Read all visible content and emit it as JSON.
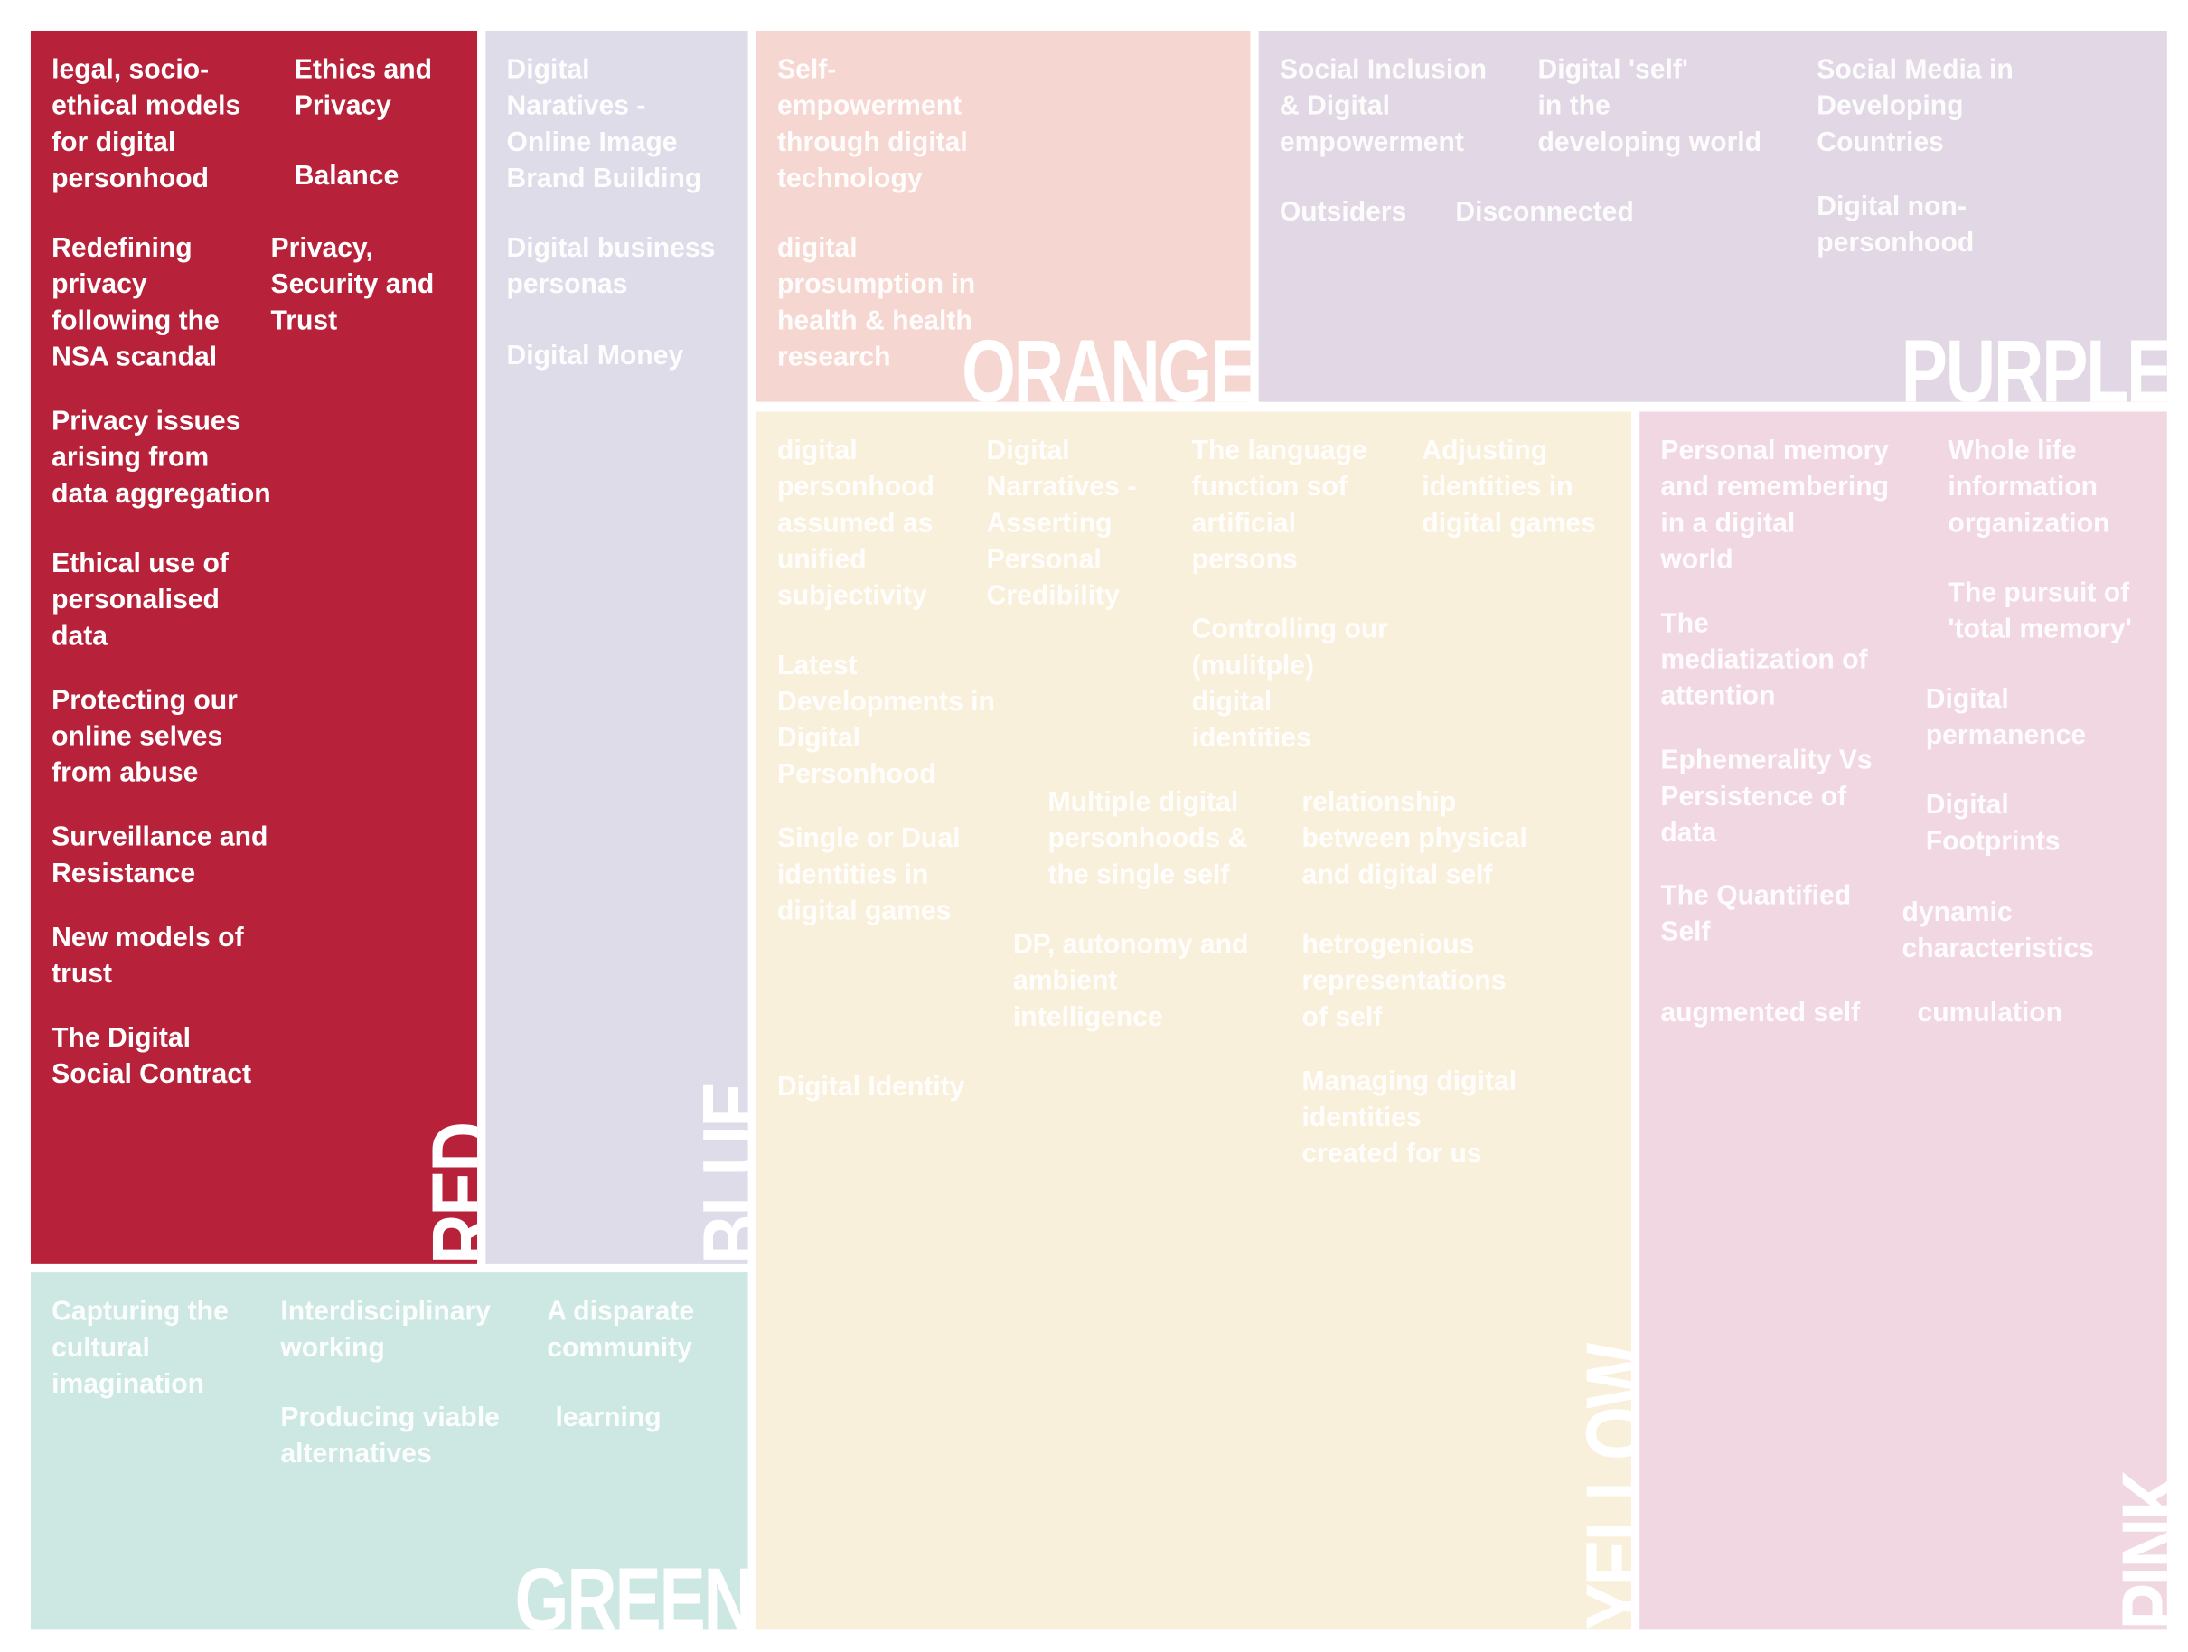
{
  "colors": {
    "red": "#b8213a",
    "blue": "#dfdcea",
    "orange": "#f5d6d0",
    "purple": "#e2d7e4",
    "yellow": "#f9f0dc",
    "pink": "#f1d7e2",
    "green": "#cde8e2"
  },
  "panels": {
    "red": {
      "label": "RED",
      "topics": [
        "legal, socio-\nethical models\nfor digital\npersonhood",
        "Ethics and\nPrivacy",
        "Balance",
        "Redefining\nprivacy\nfollowing the\nNSA scandal",
        "Privacy,\nSecurity and\nTrust",
        "Privacy issues\narising from\ndata aggregation",
        "Ethical use of\npersonalised\ndata",
        "Protecting our\nonline selves\nfrom abuse",
        "Surveillance and\nResistance",
        "New models of\ntrust",
        "The Digital\nSocial Contract"
      ]
    },
    "blue": {
      "label": "BLUE",
      "topics": [
        "Digital\nNaratives -\nOnline Image\nBrand Building",
        "Digital business\npersonas",
        "Digital Money"
      ]
    },
    "orange": {
      "label": "ORANGE",
      "topics": [
        "Self-\nempowerment\nthrough digital\ntechnology",
        "digital\nprosumption in\nhealth & health\nresearch"
      ]
    },
    "purple": {
      "label": "PURPLE",
      "topics": [
        "Social Inclusion\n& Digital\nempowerment",
        "Digital 'self'\nin the\ndeveloping world",
        "Social Media in\nDeveloping\nCountries",
        "Outsiders",
        "Disconnected",
        "Digital non-\npersonhood"
      ]
    },
    "yellow": {
      "label": "YELLOW",
      "topics": [
        "digital\npersonhood\nassumed as\nunified\nsubjectivity",
        "Digital\nNarratives -\nAsserting\nPersonal\nCredibility",
        "The language\nfunction sof\nartificial\npersons",
        "Adjusting\nidentities in\ndigital games",
        "Controlling our\n(mulitple)\ndigital\nidentities",
        "Latest\nDevelopments in\nDigital\nPersonhood",
        "Multiple digital\npersonhoods &\nthe single self",
        "relationship\nbetween physical\nand digital self",
        "Single or Dual\nidentities in\ndigital games",
        "DP, autonomy and\nambient\nintelligence",
        "hetrogenious\nrepresentations\nof self",
        "Digital Identity",
        "Managing digital\nidentities\ncreated for us"
      ]
    },
    "pink": {
      "label": "PINK",
      "topics": [
        "Personal memory\nand remembering\nin a digital\nworld",
        "Whole life\ninformation\norganization",
        "The pursuit of\n'total memory'",
        "The\nmediatization of\nattention",
        "Digital\npermanence",
        "Ephemerality Vs\nPersistence of\ndata",
        "Digital\nFootprints",
        "The Quantified\nSelf",
        "dynamic\ncharacteristics",
        "augmented self",
        "cumulation"
      ]
    },
    "green": {
      "label": "GREEN",
      "topics": [
        "Capturing the\ncultural\nimagination",
        "Interdisciplinary\nworking",
        "A disparate\ncommunity",
        "Producing viable\nalternatives",
        "learning"
      ]
    }
  }
}
